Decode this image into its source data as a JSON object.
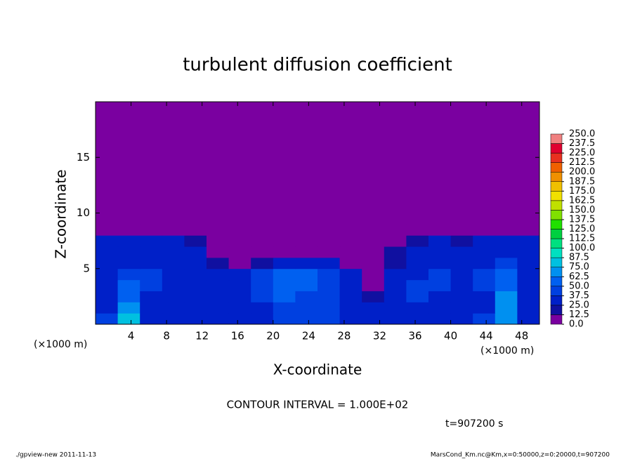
{
  "chart_data": {
    "type": "contour",
    "title": "turbulent diffusion coefficient",
    "xlabel": "X-coordinate",
    "ylabel": "Z-coordinate",
    "x_unit_left": "(×1000 m)",
    "x_unit_right": "(×1000 m)",
    "note": "CONTOUR INTERVAL = 1.000E+02",
    "time": "t=907200 s",
    "footer_left": "./gpview-new   2011-11-13",
    "footer_right": "MarsCond_Km.nc@Km,x=0:50000,z=0:20000,t=907200",
    "xlim": [
      0,
      50
    ],
    "ylim": [
      0,
      20
    ],
    "xticks": [
      4,
      8,
      12,
      16,
      20,
      24,
      28,
      32,
      36,
      40,
      44,
      48
    ],
    "yticks": [
      5,
      10,
      15
    ],
    "x": [
      1.25,
      3.75,
      6.25,
      8.75,
      11.25,
      13.75,
      16.25,
      18.75,
      21.25,
      23.75,
      26.25,
      28.75,
      31.25,
      33.75,
      36.25,
      38.75,
      41.25,
      43.75,
      46.25,
      48.75
    ],
    "y": [
      0.5,
      1.5,
      2.5,
      3.5,
      4.5,
      5.5,
      6.5,
      7.5,
      8.5,
      9.5
    ],
    "z": [
      [
        40,
        75,
        35,
        30,
        30,
        25,
        30,
        35,
        45,
        40,
        40,
        35,
        30,
        30,
        35,
        30,
        35,
        40,
        70,
        35
      ],
      [
        35,
        70,
        30,
        25,
        30,
        25,
        30,
        35,
        45,
        45,
        40,
        35,
        25,
        30,
        35,
        30,
        35,
        35,
        70,
        30
      ],
      [
        30,
        60,
        35,
        30,
        30,
        30,
        35,
        40,
        50,
        45,
        40,
        35,
        20,
        35,
        40,
        35,
        30,
        35,
        65,
        30
      ],
      [
        35,
        55,
        40,
        35,
        30,
        30,
        35,
        40,
        50,
        50,
        40,
        30,
        10,
        30,
        40,
        40,
        35,
        40,
        60,
        35
      ],
      [
        30,
        45,
        40,
        35,
        35,
        30,
        30,
        45,
        55,
        50,
        45,
        35,
        0,
        25,
        35,
        40,
        35,
        40,
        55,
        30
      ],
      [
        30,
        35,
        35,
        35,
        30,
        20,
        10,
        15,
        35,
        30,
        25,
        10,
        0,
        20,
        30,
        35,
        30,
        35,
        40,
        30
      ],
      [
        30,
        30,
        35,
        30,
        25,
        0,
        0,
        0,
        10,
        0,
        0,
        0,
        0,
        15,
        25,
        30,
        30,
        35,
        35,
        30
      ],
      [
        25,
        25,
        30,
        30,
        15,
        0,
        0,
        0,
        0,
        0,
        0,
        0,
        0,
        10,
        20,
        25,
        20,
        25,
        30,
        25
      ],
      [
        0,
        10,
        10,
        0,
        0,
        0,
        0,
        0,
        0,
        0,
        0,
        0,
        0,
        0,
        0,
        0,
        0,
        0,
        0,
        0
      ],
      [
        0,
        0,
        0,
        0,
        0,
        0,
        0,
        0,
        0,
        0,
        0,
        0,
        0,
        0,
        0,
        0,
        0,
        0,
        0,
        0
      ]
    ],
    "levels": [
      {
        "value": 0,
        "label": "0.0"
      },
      12.5,
      {
        "value": 25,
        "label": "25.0"
      },
      37.5,
      {
        "value": 50,
        "label": "50.0"
      },
      62.5,
      {
        "value": 75,
        "label": "75.0"
      },
      87.5,
      {
        "value": 100,
        "label": "100.0"
      },
      112.5,
      {
        "value": 125,
        "label": "125.0"
      },
      137.5,
      {
        "value": 150,
        "label": "150.0"
      },
      162.5,
      {
        "value": 175,
        "label": "175.0"
      },
      187.5,
      {
        "value": 200,
        "label": "200.0"
      },
      212.5,
      {
        "value": 225,
        "label": "225.0"
      },
      237.5,
      {
        "value": 250,
        "label": "250.0"
      }
    ],
    "colors": [
      "#7a00a0",
      "#1010a0",
      "#0020c8",
      "#0040e0",
      "#0060f0",
      "#0090f0",
      "#00c0e0",
      "#00e0c0",
      "#00e080",
      "#00d040",
      "#20e000",
      "#80e000",
      "#c0e000",
      "#f0e000",
      "#f0c000",
      "#f09000",
      "#f06000",
      "#e83020",
      "#e00030",
      "#f08080"
    ]
  }
}
